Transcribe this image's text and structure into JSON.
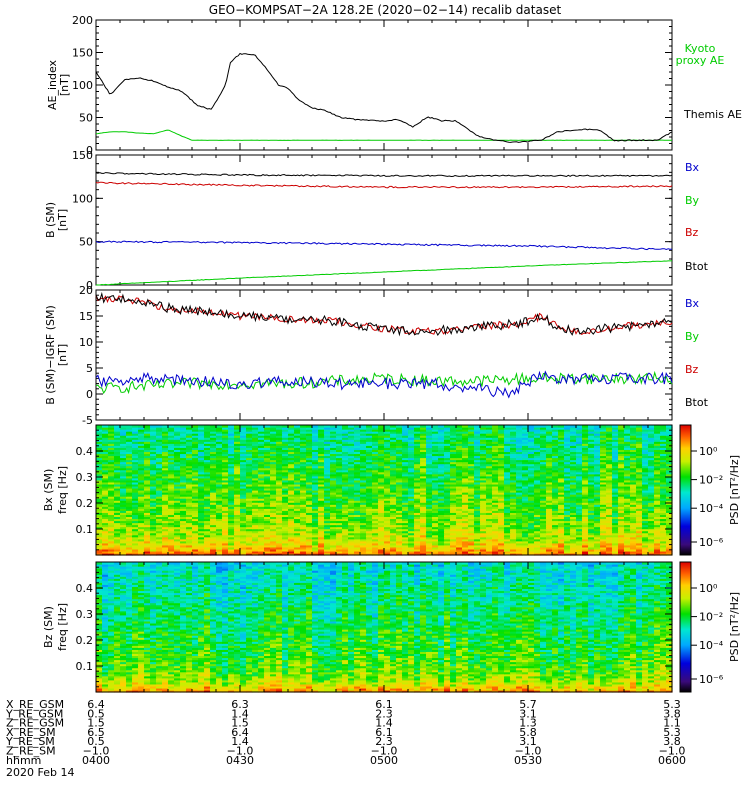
{
  "title": "GEO−KOMPSAT−2A 128.2E (2020−02−14) recalib dataset",
  "chart_data": [
    {
      "type": "line",
      "id": "ae",
      "ylabel": "AE_index",
      "yunit": "[nT]",
      "ylim": [
        0,
        200
      ],
      "yticks": [
        0,
        50,
        100,
        150,
        200
      ],
      "xlim": [
        0,
        120
      ],
      "legend": [
        {
          "label": "Kyoto",
          "color": "#00cc00"
        },
        {
          "label": "proxy AE",
          "color": "#00cc00"
        },
        {
          "label": "Themis AE",
          "color": "#000000"
        }
      ],
      "series": [
        {
          "name": "Themis AE",
          "color": "#000000",
          "x": [
            0,
            3,
            6,
            9,
            12,
            15,
            18,
            21,
            24,
            27,
            28,
            30,
            33,
            35,
            38,
            40,
            42,
            45,
            48,
            51,
            54,
            57,
            60,
            63,
            66,
            69,
            72,
            75,
            78,
            80,
            84,
            87,
            90,
            93,
            96,
            99,
            102,
            105,
            108,
            111,
            114,
            117,
            120
          ],
          "y": [
            120,
            85,
            108,
            111,
            106,
            97,
            90,
            69,
            62,
            100,
            135,
            148,
            147,
            130,
            100,
            95,
            78,
            65,
            60,
            50,
            47,
            46,
            44,
            47,
            35,
            51,
            45,
            45,
            29,
            20,
            14,
            12,
            13,
            16,
            28,
            30,
            32,
            30,
            14,
            15,
            15,
            15,
            28
          ]
        },
        {
          "name": "Kyoto proxy AE",
          "color": "#00cc00",
          "x": [
            0,
            3,
            6,
            9,
            12,
            15,
            18,
            20,
            24,
            30,
            60,
            90,
            120
          ],
          "y": [
            25,
            28,
            28,
            26,
            25,
            31,
            21,
            15,
            15,
            15,
            15,
            15,
            15
          ]
        }
      ]
    },
    {
      "type": "line",
      "id": "bsm",
      "ylabel": "B (SM)",
      "yunit": "[nT]",
      "ylim": [
        0,
        150
      ],
      "yticks": [
        0,
        50,
        100,
        150
      ],
      "xlim": [
        0,
        120
      ],
      "legend": [
        {
          "label": "Bx",
          "color": "#0000cc"
        },
        {
          "label": "By",
          "color": "#00cc00"
        },
        {
          "label": "Bz",
          "color": "#cc0000"
        },
        {
          "label": "Btot",
          "color": "#000000"
        }
      ],
      "series": [
        {
          "name": "Btot",
          "color": "#000000",
          "x": [
            0,
            30,
            60,
            90,
            120
          ],
          "y": [
            129,
            127,
            126,
            126,
            126
          ]
        },
        {
          "name": "Bz",
          "color": "#cc0000",
          "x": [
            0,
            30,
            60,
            90,
            120
          ],
          "y": [
            118,
            115,
            113,
            113,
            114
          ]
        },
        {
          "name": "Bx",
          "color": "#0000cc",
          "x": [
            0,
            30,
            60,
            90,
            120
          ],
          "y": [
            50,
            49,
            47,
            45,
            41
          ]
        },
        {
          "name": "By",
          "color": "#00cc00",
          "x": [
            0,
            30,
            60,
            90,
            120
          ],
          "y": [
            0,
            8,
            15,
            22,
            28
          ]
        }
      ]
    },
    {
      "type": "line",
      "id": "bigrf",
      "ylabel": "B (SM)−IGRF (SM)",
      "yunit": "[nT]",
      "ylim": [
        -5,
        20
      ],
      "yticks": [
        -5,
        0,
        5,
        10,
        15,
        20
      ],
      "xlim": [
        0,
        120
      ],
      "legend": [
        {
          "label": "Bx",
          "color": "#0000cc"
        },
        {
          "label": "By",
          "color": "#00cc00"
        },
        {
          "label": "Bz",
          "color": "#cc0000"
        },
        {
          "label": "Btot",
          "color": "#000000"
        }
      ],
      "series": [
        {
          "name": "Btot",
          "color": "#000000",
          "x": [
            0,
            8,
            15,
            20,
            30,
            40,
            50,
            60,
            70,
            80,
            88,
            93,
            96,
            100,
            110,
            120
          ],
          "y": [
            18.5,
            18,
            16.5,
            16,
            15,
            14.5,
            14,
            12.5,
            12,
            13,
            13.5,
            15,
            13,
            12,
            13,
            14
          ]
        },
        {
          "name": "Bz",
          "color": "#cc0000",
          "x": [
            0,
            8,
            15,
            20,
            30,
            40,
            50,
            60,
            70,
            80,
            88,
            93,
            96,
            100,
            110,
            120
          ],
          "y": [
            18.5,
            18,
            16.5,
            16,
            15,
            14.5,
            14,
            12.5,
            12,
            13,
            13.5,
            15,
            13,
            12,
            13,
            14
          ]
        },
        {
          "name": "Bx",
          "color": "#0000cc",
          "x": [
            0,
            10,
            20,
            30,
            40,
            50,
            60,
            70,
            80,
            85,
            90,
            93,
            96,
            100,
            110,
            120
          ],
          "y": [
            2.5,
            3,
            2.5,
            2,
            2.5,
            2,
            2,
            2,
            1,
            0,
            2,
            4,
            3,
            3,
            3,
            3
          ]
        },
        {
          "name": "By",
          "color": "#00cc00",
          "x": [
            0,
            10,
            20,
            30,
            40,
            50,
            60,
            70,
            80,
            90,
            100,
            110,
            120
          ],
          "y": [
            1,
            1.5,
            2,
            2,
            2,
            2.5,
            3,
            2.5,
            2.5,
            3,
            3,
            3,
            3
          ]
        }
      ]
    },
    {
      "type": "heatmap",
      "id": "specx",
      "ylabel": "Bx (SM)",
      "yunit": "freq [Hz]",
      "ylim": [
        0,
        0.5
      ],
      "yticks": [
        0.1,
        0.2,
        0.3,
        0.4
      ],
      "xlim": [
        0,
        120
      ],
      "colorbar": {
        "label": "PSD [nT²/Hz]",
        "ticks": [
          "10⁰",
          "10⁻²",
          "10⁻⁴",
          "10⁻⁶"
        ]
      }
    },
    {
      "type": "heatmap",
      "id": "specz",
      "ylabel": "Bz (SM)",
      "yunit": "freq [Hz]",
      "ylim": [
        0,
        0.5
      ],
      "yticks": [
        0.1,
        0.2,
        0.3,
        0.4
      ],
      "xlim": [
        0,
        120
      ],
      "colorbar": {
        "label": "PSD [nT²/Hz]",
        "ticks": [
          "10⁰",
          "10⁻²",
          "10⁻⁴",
          "10⁻⁶"
        ]
      }
    }
  ],
  "orbit": {
    "labels": [
      "X_RE_GSM",
      "Y_RE_GSM",
      "Z_RE_GSM",
      "X_RE_SM",
      "Y_RE_SM",
      "Z_RE_SM",
      "hhmm"
    ],
    "columns": [
      [
        "6.4",
        "0.5",
        "1.5",
        "6.5",
        "0.5",
        "−1.0",
        "0400"
      ],
      [
        "6.3",
        "1.4",
        "1.5",
        "6.4",
        "1.4",
        "−1.0",
        "0430"
      ],
      [
        "6.1",
        "2.3",
        "1.4",
        "6.1",
        "2.3",
        "−1.0",
        "0500"
      ],
      [
        "5.7",
        "3.1",
        "1.3",
        "5.8",
        "3.1",
        "−1.0",
        "0530"
      ],
      [
        "5.3",
        "3.8",
        "1.1",
        "5.3",
        "3.8",
        "−1.0",
        "0600"
      ]
    ],
    "date": "2020 Feb 14"
  }
}
